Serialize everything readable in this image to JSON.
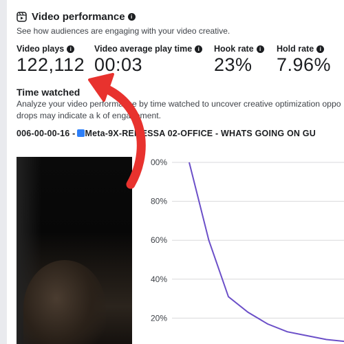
{
  "header": {
    "title": "Video performance",
    "subtitle": "See how audiences are engaging with your video creative."
  },
  "metrics": [
    {
      "label": "Video plays",
      "value": "122,112"
    },
    {
      "label": "Video average play time",
      "value": "00:03"
    },
    {
      "label": "Hook rate",
      "value": "23%"
    },
    {
      "label": "Hold rate",
      "value": "7.96%"
    }
  ],
  "time_watched": {
    "title": "Time watched",
    "description_line1": "Analyze your video pe",
    "description_line1_end": "rformance by time watched to uncover creative optimization oppo",
    "description_line2": "drops may indicate a",
    "description_line2_end": "k of engagement.",
    "video_id_prefix": "006-00-00-16  -",
    "video_id_suffix": "Meta-9X",
    "video_id_rest": "-REMESSA 02-OFFICE - WHATS GOING ON GU"
  },
  "chart_data": {
    "type": "line",
    "y_tick_labels": [
      "00%",
      "80%",
      "60%",
      "40%",
      "20%"
    ],
    "ylim": [
      0,
      100
    ],
    "series": [
      {
        "x": [
          0,
          1,
          2,
          3,
          4,
          5,
          6,
          7,
          8,
          9,
          10
        ],
        "values": [
          100,
          60,
          31,
          23,
          17,
          13,
          11,
          9,
          8,
          8,
          9
        ]
      }
    ]
  },
  "colors": {
    "line": "#6b4fc8",
    "arrow": "#e8322e",
    "grid": "#d8d9dc"
  },
  "icons": {
    "video": "video-reel-icon",
    "info": "info-icon",
    "arrow": "red-curved-arrow"
  }
}
